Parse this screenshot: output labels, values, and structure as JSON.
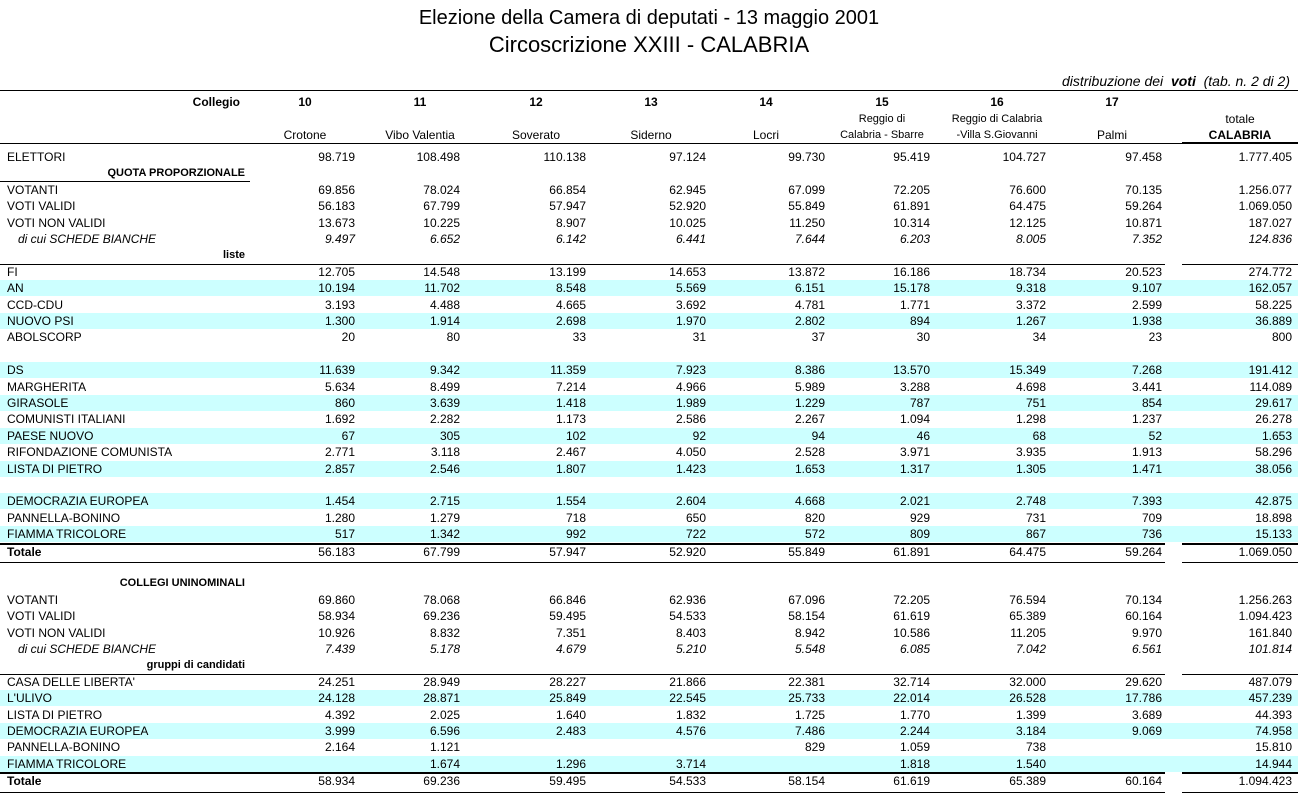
{
  "header": {
    "title": "Elezione della Camera di deputati  -  13 maggio 2001",
    "subtitle": "Circoscrizione XXIII - CALABRIA",
    "note": {
      "before": "distribuzione dei",
      "emphasis": "voti",
      "after": "(tab. n. 2 di 2)"
    }
  },
  "columns": {
    "label": "Collegio",
    "collegi": [
      {
        "number": "10",
        "name": [
          "Crotone"
        ]
      },
      {
        "number": "11",
        "name": [
          "Vibo Valentia"
        ]
      },
      {
        "number": "12",
        "name": [
          "Soverato"
        ]
      },
      {
        "number": "13",
        "name": [
          "Siderno"
        ]
      },
      {
        "number": "14",
        "name": [
          "Locri"
        ]
      },
      {
        "number": "15",
        "name": [
          "Reggio di",
          "Calabria - Sbarre"
        ]
      },
      {
        "number": "16",
        "name": [
          "Reggio di Calabria",
          "-Villa S.Giovanni"
        ]
      },
      {
        "number": "17",
        "name": [
          "Palmi"
        ]
      }
    ],
    "total": [
      "totale",
      "CALABRIA"
    ]
  },
  "elettori": {
    "label": "ELETTORI",
    "values": [
      "98.719",
      "108.498",
      "110.138",
      "97.124",
      "99.730",
      "95.419",
      "104.727",
      "97.458"
    ],
    "total": "1.777.405"
  },
  "quota_proporzionale": {
    "title": "QUOTA PROPORZIONALE",
    "summary": [
      {
        "label": "VOTANTI",
        "values": [
          "69.856",
          "78.024",
          "66.854",
          "62.945",
          "67.099",
          "72.205",
          "76.600",
          "70.135"
        ],
        "total": "1.256.077"
      },
      {
        "label": "VOTI VALIDI",
        "values": [
          "56.183",
          "67.799",
          "57.947",
          "52.920",
          "55.849",
          "61.891",
          "64.475",
          "59.264"
        ],
        "total": "1.069.050"
      },
      {
        "label": "VOTI NON VALIDI",
        "values": [
          "13.673",
          "10.225",
          "8.907",
          "10.025",
          "11.250",
          "10.314",
          "12.125",
          "10.871"
        ],
        "total": "187.027"
      },
      {
        "label": "di cui  SCHEDE BIANCHE",
        "values": [
          "9.497",
          "6.652",
          "6.142",
          "6.441",
          "7.644",
          "6.203",
          "8.005",
          "7.352"
        ],
        "total": "124.836"
      }
    ],
    "subtitle": "liste",
    "groups": [
      [
        {
          "label": "FI",
          "values": [
            "12.705",
            "14.548",
            "13.199",
            "14.653",
            "13.872",
            "16.186",
            "18.734",
            "20.523"
          ],
          "total": "274.772"
        },
        {
          "label": "AN",
          "values": [
            "10.194",
            "11.702",
            "8.548",
            "5.569",
            "6.151",
            "15.178",
            "9.318",
            "9.107"
          ],
          "total": "162.057"
        },
        {
          "label": "CCD-CDU",
          "values": [
            "3.193",
            "4.488",
            "4.665",
            "3.692",
            "4.781",
            "1.771",
            "3.372",
            "2.599"
          ],
          "total": "58.225"
        },
        {
          "label": "NUOVO PSI",
          "values": [
            "1.300",
            "1.914",
            "2.698",
            "1.970",
            "2.802",
            "894",
            "1.267",
            "1.938"
          ],
          "total": "36.889"
        },
        {
          "label": "ABOLSCORP",
          "values": [
            "20",
            "80",
            "33",
            "31",
            "37",
            "30",
            "34",
            "23"
          ],
          "total": "800"
        }
      ],
      [
        {
          "label": "DS",
          "values": [
            "11.639",
            "9.342",
            "11.359",
            "7.923",
            "8.386",
            "13.570",
            "15.349",
            "7.268"
          ],
          "total": "191.412"
        },
        {
          "label": "MARGHERITA",
          "values": [
            "5.634",
            "8.499",
            "7.214",
            "4.966",
            "5.989",
            "3.288",
            "4.698",
            "3.441"
          ],
          "total": "114.089"
        },
        {
          "label": "GIRASOLE",
          "values": [
            "860",
            "3.639",
            "1.418",
            "1.989",
            "1.229",
            "787",
            "751",
            "854"
          ],
          "total": "29.617"
        },
        {
          "label": "COMUNISTI ITALIANI",
          "values": [
            "1.692",
            "2.282",
            "1.173",
            "2.586",
            "2.267",
            "1.094",
            "1.298",
            "1.237"
          ],
          "total": "26.278"
        },
        {
          "label": "PAESE NUOVO",
          "values": [
            "67",
            "305",
            "102",
            "92",
            "94",
            "46",
            "68",
            "52"
          ],
          "total": "1.653"
        },
        {
          "label": "RIFONDAZIONE COMUNISTA",
          "values": [
            "2.771",
            "3.118",
            "2.467",
            "4.050",
            "2.528",
            "3.971",
            "3.935",
            "1.913"
          ],
          "total": "58.296"
        },
        {
          "label": "LISTA DI PIETRO",
          "values": [
            "2.857",
            "2.546",
            "1.807",
            "1.423",
            "1.653",
            "1.317",
            "1.305",
            "1.471"
          ],
          "total": "38.056"
        }
      ],
      [
        {
          "label": "DEMOCRAZIA EUROPEA",
          "values": [
            "1.454",
            "2.715",
            "1.554",
            "2.604",
            "4.668",
            "2.021",
            "2.748",
            "7.393"
          ],
          "total": "42.875"
        },
        {
          "label": "PANNELLA-BONINO",
          "values": [
            "1.280",
            "1.279",
            "718",
            "650",
            "820",
            "929",
            "731",
            "709"
          ],
          "total": "18.898"
        },
        {
          "label": "FIAMMA TRICOLORE",
          "values": [
            "517",
            "1.342",
            "992",
            "722",
            "572",
            "809",
            "867",
            "736"
          ],
          "total": "15.133"
        }
      ]
    ],
    "totale": {
      "label": "Totale",
      "values": [
        "56.183",
        "67.799",
        "57.947",
        "52.920",
        "55.849",
        "61.891",
        "64.475",
        "59.264"
      ],
      "total": "1.069.050"
    }
  },
  "collegi_uninominali": {
    "title": "COLLEGI UNINOMINALI",
    "summary": [
      {
        "label": "VOTANTI",
        "values": [
          "69.860",
          "78.068",
          "66.846",
          "62.936",
          "67.096",
          "72.205",
          "76.594",
          "70.134"
        ],
        "total": "1.256.263"
      },
      {
        "label": "VOTI VALIDI",
        "values": [
          "58.934",
          "69.236",
          "59.495",
          "54.533",
          "58.154",
          "61.619",
          "65.389",
          "60.164"
        ],
        "total": "1.094.423"
      },
      {
        "label": "VOTI NON VALIDI",
        "values": [
          "10.926",
          "8.832",
          "7.351",
          "8.403",
          "8.942",
          "10.586",
          "11.205",
          "9.970"
        ],
        "total": "161.840"
      },
      {
        "label": "di cui  SCHEDE BIANCHE",
        "values": [
          "7.439",
          "5.178",
          "4.679",
          "5.210",
          "5.548",
          "6.085",
          "7.042",
          "6.561"
        ],
        "total": "101.814"
      }
    ],
    "subtitle": "gruppi di candidati",
    "groups": [
      [
        {
          "label": "CASA DELLE LIBERTA'",
          "values": [
            "24.251",
            "28.949",
            "28.227",
            "21.866",
            "22.381",
            "32.714",
            "32.000",
            "29.620"
          ],
          "total": "487.079"
        },
        {
          "label": "L'ULIVO",
          "values": [
            "24.128",
            "28.871",
            "25.849",
            "22.545",
            "25.733",
            "22.014",
            "26.528",
            "17.786"
          ],
          "total": "457.239"
        },
        {
          "label": "LISTA DI PIETRO",
          "values": [
            "4.392",
            "2.025",
            "1.640",
            "1.832",
            "1.725",
            "1.770",
            "1.399",
            "3.689"
          ],
          "total": "44.393"
        },
        {
          "label": "DEMOCRAZIA EUROPEA",
          "values": [
            "3.999",
            "6.596",
            "2.483",
            "4.576",
            "7.486",
            "2.244",
            "3.184",
            "9.069"
          ],
          "total": "74.958"
        },
        {
          "label": "PANNELLA-BONINO",
          "values": [
            "2.164",
            "1.121",
            null,
            null,
            "829",
            "1.059",
            "738",
            null
          ],
          "total": "15.810"
        },
        {
          "label": "FIAMMA TRICOLORE",
          "values": [
            null,
            "1.674",
            "1.296",
            "3.714",
            null,
            "1.818",
            "1.540",
            null
          ],
          "total": "14.944"
        }
      ]
    ],
    "totale": {
      "label": "Totale",
      "values": [
        "58.934",
        "69.236",
        "59.495",
        "54.533",
        "58.154",
        "61.619",
        "65.389",
        "60.164"
      ],
      "total": "1.094.423"
    }
  }
}
